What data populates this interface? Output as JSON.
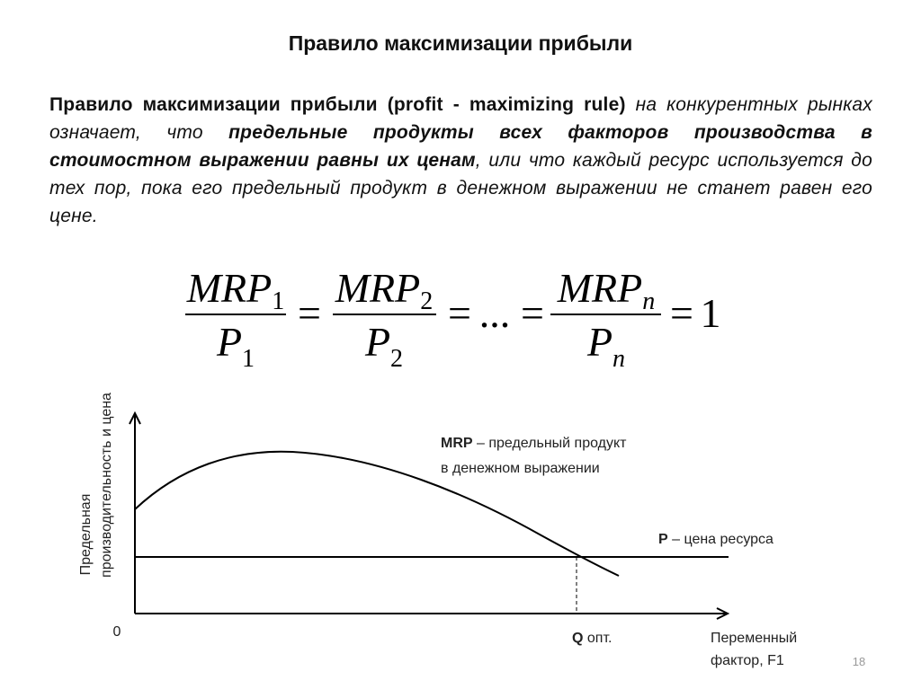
{
  "title": "Правило максимизации прибыли",
  "paragraph": {
    "lead": "Правило максимизации прибыли (profit - maximizing rule)",
    "text1": " на конкурентных рынках означает, что ",
    "emphasis": "предельные продукты всех факторов производства в стоимостном выражении равны их ценам",
    "text2": ", или что каждый ресурс используется до тех пор, пока его предельный продукт в денежном выражении не станет равен его цене."
  },
  "formula": {
    "terms": [
      {
        "num": "MRP",
        "num_sub": "1",
        "den": "P",
        "den_sub": "1"
      },
      {
        "num": "MRP",
        "num_sub": "2",
        "den": "P",
        "den_sub": "2"
      },
      {
        "num": "MRP",
        "num_sub": "n",
        "den": "P",
        "den_sub": "n"
      }
    ],
    "equals": "=",
    "ellipsis": "...",
    "result": "1"
  },
  "diagram": {
    "y_label": [
      "Предельная",
      "производительность и цена"
    ],
    "origin": "0",
    "x_label": [
      "Переменный",
      "фактор, F1"
    ],
    "q_label": {
      "bold": "Q",
      "text": " опт."
    },
    "mrp_label": {
      "bold": "MRP",
      "lines": [
        " – предельный продукт",
        "в денежном выражении"
      ]
    },
    "p_label": {
      "bold": "P",
      "text": " – цена ресурса"
    }
  },
  "page_number": "18"
}
